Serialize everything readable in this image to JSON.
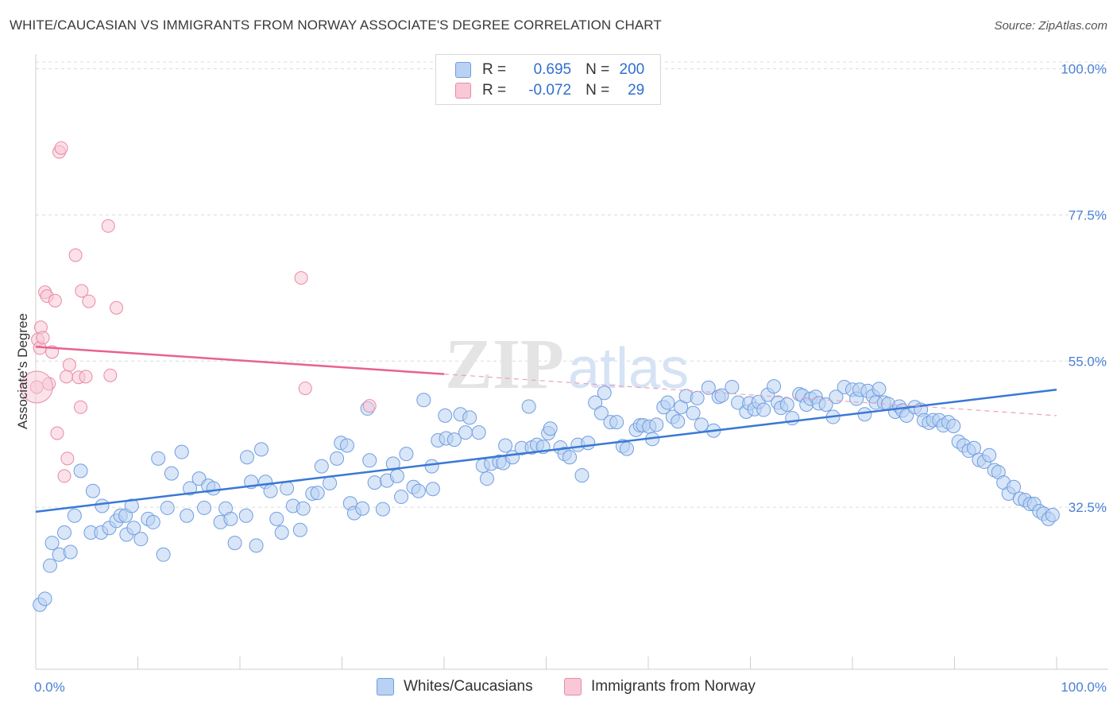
{
  "title": "WHITE/CAUCASIAN VS IMMIGRANTS FROM NORWAY ASSOCIATE'S DEGREE CORRELATION CHART",
  "source": "Source: ZipAtlas.com",
  "legend": {
    "blue": {
      "r_label": "R =",
      "r_value": "0.695",
      "n_label": "N =",
      "n_value": "200"
    },
    "pink": {
      "r_label": "R =",
      "r_value": "-0.072",
      "n_label": "N =",
      "n_value": "29"
    }
  },
  "bottom_legend": {
    "blue": "Whites/Caucasians",
    "pink": "Immigrants from Norway"
  },
  "colors": {
    "blue": "#3a78d4",
    "blue_fill": "#b9d1f3",
    "pink": "#e8628d",
    "pink_fill": "#f8c8d6",
    "tick_text": "#4a7fd4"
  },
  "chart_data": {
    "type": "scatter",
    "title": "WHITE/CAUCASIAN VS IMMIGRANTS FROM NORWAY ASSOCIATE'S DEGREE CORRELATION CHART",
    "xlabel": "",
    "ylabel": "Associate's Degree",
    "xlim": [
      0,
      100
    ],
    "ylim": [
      10,
      103
    ],
    "y_ticks": [
      32.5,
      55.0,
      77.5,
      100.0
    ],
    "y_tick_labels": [
      "32.5%",
      "55.0%",
      "77.5%",
      "100.0%"
    ],
    "x_tick_labels": [
      "0.0%",
      "100.0%"
    ],
    "grid": true,
    "legend_position": "top-center",
    "series": [
      {
        "name": "Whites/Caucasians",
        "r": 0.695,
        "n": 200,
        "trend": [
          [
            0,
            31.8
          ],
          [
            100,
            50.6
          ]
        ],
        "points": [
          [
            0.4,
            17.5
          ],
          [
            0.9,
            18.4
          ],
          [
            1.4,
            23.5
          ],
          [
            1.6,
            27.0
          ],
          [
            2.3,
            25.2
          ],
          [
            2.8,
            28.6
          ],
          [
            3.4,
            25.6
          ],
          [
            3.8,
            31.2
          ],
          [
            4.4,
            38.1
          ],
          [
            5.4,
            28.6
          ],
          [
            5.6,
            35.0
          ],
          [
            6.4,
            28.6
          ],
          [
            6.5,
            32.7
          ],
          [
            7.2,
            29.3
          ],
          [
            7.9,
            30.4
          ],
          [
            8.3,
            31.2
          ],
          [
            8.8,
            31.2
          ],
          [
            8.9,
            28.3
          ],
          [
            9.4,
            32.7
          ],
          [
            9.6,
            29.3
          ],
          [
            10.3,
            27.6
          ],
          [
            11.0,
            30.7
          ],
          [
            11.5,
            30.2
          ],
          [
            12.0,
            40.0
          ],
          [
            12.5,
            25.2
          ],
          [
            12.9,
            32.4
          ],
          [
            13.3,
            37.7
          ],
          [
            14.3,
            41.0
          ],
          [
            14.8,
            31.2
          ],
          [
            15.1,
            35.4
          ],
          [
            16.0,
            36.9
          ],
          [
            16.5,
            32.4
          ],
          [
            16.9,
            35.8
          ],
          [
            17.4,
            35.4
          ],
          [
            18.1,
            30.2
          ],
          [
            18.6,
            32.3
          ],
          [
            19.1,
            30.7
          ],
          [
            19.5,
            27.0
          ],
          [
            20.6,
            31.2
          ],
          [
            20.7,
            40.2
          ],
          [
            21.1,
            36.4
          ],
          [
            21.6,
            26.6
          ],
          [
            22.1,
            41.4
          ],
          [
            22.5,
            36.4
          ],
          [
            23.0,
            35.0
          ],
          [
            23.6,
            30.7
          ],
          [
            24.1,
            28.6
          ],
          [
            24.6,
            35.4
          ],
          [
            25.2,
            32.7
          ],
          [
            25.9,
            29.0
          ],
          [
            26.2,
            32.3
          ],
          [
            27.1,
            34.6
          ],
          [
            27.6,
            34.7
          ],
          [
            28.0,
            38.8
          ],
          [
            28.8,
            36.2
          ],
          [
            29.5,
            40.0
          ],
          [
            29.9,
            42.4
          ],
          [
            30.5,
            42.0
          ],
          [
            30.8,
            33.1
          ],
          [
            31.2,
            31.6
          ],
          [
            32.0,
            32.3
          ],
          [
            32.5,
            47.7
          ],
          [
            32.7,
            39.7
          ],
          [
            33.2,
            36.3
          ],
          [
            34.0,
            32.2
          ],
          [
            34.4,
            36.6
          ],
          [
            35.0,
            39.2
          ],
          [
            35.4,
            37.3
          ],
          [
            35.8,
            34.1
          ],
          [
            36.3,
            40.7
          ],
          [
            37.0,
            35.6
          ],
          [
            37.5,
            35.0
          ],
          [
            38.0,
            49.0
          ],
          [
            38.8,
            38.8
          ],
          [
            38.9,
            35.3
          ],
          [
            39.4,
            42.8
          ],
          [
            40.1,
            46.6
          ],
          [
            40.2,
            43.1
          ],
          [
            41.0,
            42.9
          ],
          [
            41.6,
            46.8
          ],
          [
            42.1,
            44.0
          ],
          [
            42.5,
            46.3
          ],
          [
            43.4,
            44.0
          ],
          [
            43.8,
            38.9
          ],
          [
            44.2,
            36.9
          ],
          [
            44.6,
            39.2
          ],
          [
            45.4,
            39.5
          ],
          [
            45.8,
            39.3
          ],
          [
            46.0,
            42.0
          ],
          [
            46.7,
            40.2
          ],
          [
            47.6,
            41.6
          ],
          [
            48.3,
            48.0
          ],
          [
            48.6,
            41.7
          ],
          [
            49.1,
            42.1
          ],
          [
            49.7,
            41.8
          ],
          [
            50.2,
            43.9
          ],
          [
            50.4,
            44.6
          ],
          [
            51.4,
            41.7
          ],
          [
            51.8,
            40.7
          ],
          [
            52.3,
            40.2
          ],
          [
            53.1,
            42.1
          ],
          [
            53.5,
            37.4
          ],
          [
            54.1,
            42.4
          ],
          [
            54.8,
            48.6
          ],
          [
            55.4,
            47.0
          ],
          [
            55.7,
            50.1
          ],
          [
            56.3,
            45.6
          ],
          [
            56.9,
            45.6
          ],
          [
            57.5,
            41.9
          ],
          [
            57.9,
            41.5
          ],
          [
            58.8,
            44.4
          ],
          [
            59.2,
            45.1
          ],
          [
            59.5,
            45.1
          ],
          [
            60.1,
            44.9
          ],
          [
            60.4,
            43.0
          ],
          [
            60.8,
            45.2
          ],
          [
            61.5,
            47.9
          ],
          [
            61.9,
            48.6
          ],
          [
            62.4,
            46.4
          ],
          [
            62.9,
            45.7
          ],
          [
            63.2,
            47.9
          ],
          [
            63.7,
            49.6
          ],
          [
            64.4,
            47.0
          ],
          [
            64.8,
            49.3
          ],
          [
            65.2,
            45.2
          ],
          [
            65.9,
            50.9
          ],
          [
            66.4,
            44.3
          ],
          [
            66.9,
            49.5
          ],
          [
            67.2,
            49.7
          ],
          [
            68.2,
            51.0
          ],
          [
            68.8,
            48.6
          ],
          [
            69.6,
            47.2
          ],
          [
            69.9,
            48.5
          ],
          [
            70.4,
            47.6
          ],
          [
            70.8,
            48.7
          ],
          [
            71.3,
            47.5
          ],
          [
            71.7,
            49.8
          ],
          [
            72.3,
            51.1
          ],
          [
            72.7,
            48.6
          ],
          [
            73.0,
            47.8
          ],
          [
            73.6,
            48.3
          ],
          [
            74.1,
            46.2
          ],
          [
            74.8,
            49.9
          ],
          [
            75.1,
            49.7
          ],
          [
            75.5,
            48.3
          ],
          [
            75.9,
            49.2
          ],
          [
            76.4,
            49.5
          ],
          [
            76.7,
            48.5
          ],
          [
            77.4,
            48.3
          ],
          [
            78.1,
            46.4
          ],
          [
            78.4,
            49.5
          ],
          [
            79.2,
            51.0
          ],
          [
            80.0,
            50.6
          ],
          [
            80.4,
            49.2
          ],
          [
            80.7,
            50.6
          ],
          [
            81.2,
            46.8
          ],
          [
            81.5,
            50.4
          ],
          [
            82.0,
            49.6
          ],
          [
            82.3,
            48.6
          ],
          [
            82.6,
            50.7
          ],
          [
            83.1,
            48.6
          ],
          [
            83.5,
            48.4
          ],
          [
            84.2,
            47.2
          ],
          [
            84.6,
            48.0
          ],
          [
            84.9,
            47.4
          ],
          [
            85.3,
            46.6
          ],
          [
            86.1,
            47.9
          ],
          [
            86.7,
            47.5
          ],
          [
            87.0,
            45.9
          ],
          [
            87.5,
            45.5
          ],
          [
            87.9,
            45.9
          ],
          [
            88.5,
            45.9
          ],
          [
            88.9,
            45.1
          ],
          [
            89.4,
            45.6
          ],
          [
            89.9,
            45.0
          ],
          [
            90.4,
            42.6
          ],
          [
            90.9,
            42.0
          ],
          [
            91.4,
            41.2
          ],
          [
            91.9,
            41.6
          ],
          [
            92.4,
            39.8
          ],
          [
            92.9,
            39.5
          ],
          [
            93.4,
            40.5
          ],
          [
            93.9,
            38.2
          ],
          [
            94.3,
            37.9
          ],
          [
            94.8,
            36.3
          ],
          [
            95.3,
            34.6
          ],
          [
            95.8,
            35.6
          ],
          [
            96.4,
            33.8
          ],
          [
            96.9,
            33.6
          ],
          [
            97.4,
            33.0
          ],
          [
            97.8,
            33.0
          ],
          [
            98.3,
            31.9
          ],
          [
            98.7,
            31.5
          ],
          [
            99.2,
            30.7
          ],
          [
            99.6,
            31.3
          ]
        ]
      },
      {
        "name": "Immigrants from Norway",
        "r": -0.072,
        "n": 29,
        "trend_solid": [
          [
            0,
            57.2
          ],
          [
            40,
            53.0
          ]
        ],
        "trend_dashed": [
          [
            40,
            53.0
          ],
          [
            100,
            46.6
          ]
        ],
        "points": [
          [
            0.1,
            51.0
          ],
          [
            0.2,
            58.3
          ],
          [
            0.4,
            57.0
          ],
          [
            0.5,
            60.2
          ],
          [
            0.7,
            58.6
          ],
          [
            0.9,
            65.6
          ],
          [
            1.1,
            65.0
          ],
          [
            1.3,
            51.5
          ],
          [
            1.6,
            56.4
          ],
          [
            1.9,
            64.3
          ],
          [
            2.1,
            43.9
          ],
          [
            2.3,
            87.2
          ],
          [
            2.5,
            87.8
          ],
          [
            2.8,
            37.3
          ],
          [
            3.0,
            52.6
          ],
          [
            3.1,
            40.0
          ],
          [
            3.3,
            54.4
          ],
          [
            3.9,
            71.3
          ],
          [
            4.2,
            52.5
          ],
          [
            4.4,
            47.9
          ],
          [
            4.5,
            65.8
          ],
          [
            4.9,
            52.6
          ],
          [
            5.2,
            64.2
          ],
          [
            7.1,
            75.8
          ],
          [
            7.3,
            52.8
          ],
          [
            7.9,
            63.2
          ],
          [
            26.0,
            67.8
          ],
          [
            26.4,
            50.8
          ],
          [
            32.7,
            48.1
          ]
        ]
      }
    ]
  }
}
